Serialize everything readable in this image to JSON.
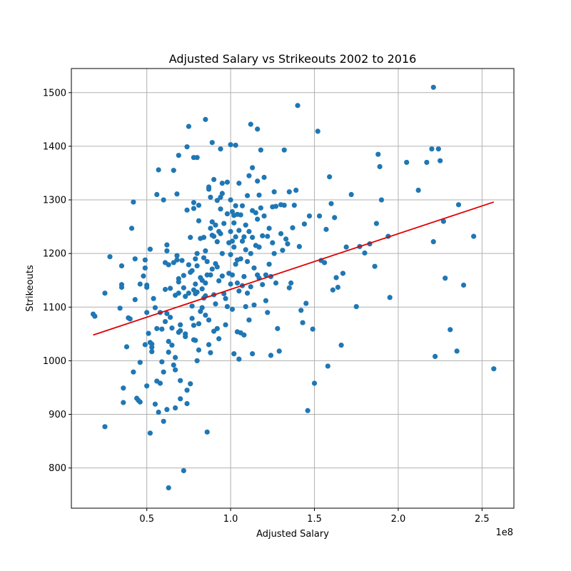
{
  "chart_data": {
    "type": "scatter",
    "title": "Adjusted Salary vs Strikeouts 2002 to 2016",
    "xlabel": "Adjusted Salary",
    "ylabel": "Strikeouts",
    "x_offset_label": "1e8",
    "xlim": [
      0.05,
      2.69
    ],
    "ylim": [
      725,
      1545
    ],
    "x_ticks": [
      0.5,
      1.0,
      1.5,
      2.0,
      2.5
    ],
    "x_tick_labels": [
      "0.5",
      "1.0",
      "1.5",
      "2.0",
      "2.5"
    ],
    "y_ticks": [
      800,
      900,
      1000,
      1100,
      1200,
      1300,
      1400,
      1500
    ],
    "y_tick_labels": [
      "800",
      "900",
      "1000",
      "1100",
      "1200",
      "1300",
      "1400",
      "1500"
    ],
    "grid": true,
    "point_color": "#1f77b4",
    "trendline": {
      "color": "#e00000",
      "x": [
        0.18,
        2.57
      ],
      "y": [
        1048,
        1296
      ]
    },
    "points": [
      [
        0.18,
        1087
      ],
      [
        0.19,
        1083
      ],
      [
        0.25,
        877
      ],
      [
        0.25,
        1126
      ],
      [
        0.28,
        1194
      ],
      [
        0.34,
        1098
      ],
      [
        0.35,
        1177
      ],
      [
        0.35,
        1142
      ],
      [
        0.35,
        1137
      ],
      [
        0.36,
        949
      ],
      [
        0.36,
        922
      ],
      [
        0.38,
        1026
      ],
      [
        0.39,
        1080
      ],
      [
        0.4,
        1078
      ],
      [
        0.41,
        1247
      ],
      [
        0.42,
        1296
      ],
      [
        0.42,
        979
      ],
      [
        0.43,
        1114
      ],
      [
        0.43,
        1190
      ],
      [
        0.44,
        930
      ],
      [
        0.45,
        926
      ],
      [
        0.46,
        923
      ],
      [
        0.46,
        997
      ],
      [
        0.46,
        1143
      ],
      [
        0.48,
        1158
      ],
      [
        0.49,
        1188
      ],
      [
        0.49,
        1173
      ],
      [
        0.49,
        1030
      ],
      [
        0.5,
        1141
      ],
      [
        0.5,
        1137
      ],
      [
        0.5,
        953
      ],
      [
        0.5,
        1090
      ],
      [
        0.51,
        1051
      ],
      [
        0.52,
        865
      ],
      [
        0.52,
        1034
      ],
      [
        0.52,
        1208
      ],
      [
        0.53,
        1031
      ],
      [
        0.53,
        1025
      ],
      [
        0.53,
        1017
      ],
      [
        0.54,
        1116
      ],
      [
        0.55,
        919
      ],
      [
        0.55,
        1099
      ],
      [
        0.56,
        1310
      ],
      [
        0.56,
        962
      ],
      [
        0.56,
        1060
      ],
      [
        0.57,
        1356
      ],
      [
        0.57,
        904
      ],
      [
        0.58,
        1090
      ],
      [
        0.58,
        958
      ],
      [
        0.59,
        1059
      ],
      [
        0.59,
        998
      ],
      [
        0.6,
        979
      ],
      [
        0.6,
        1300
      ],
      [
        0.6,
        887
      ],
      [
        0.61,
        1073
      ],
      [
        0.61,
        1133
      ],
      [
        0.61,
        1183
      ],
      [
        0.62,
        1205
      ],
      [
        0.62,
        1216
      ],
      [
        0.62,
        909
      ],
      [
        0.62,
        1088
      ],
      [
        0.63,
        763
      ],
      [
        0.63,
        1179
      ],
      [
        0.63,
        1036
      ],
      [
        0.63,
        1016
      ],
      [
        0.64,
        1135
      ],
      [
        0.64,
        1081
      ],
      [
        0.65,
        1061
      ],
      [
        0.65,
        1029
      ],
      [
        0.66,
        1355
      ],
      [
        0.66,
        1183
      ],
      [
        0.66,
        992
      ],
      [
        0.67,
        912
      ],
      [
        0.67,
        1122
      ],
      [
        0.67,
        1006
      ],
      [
        0.67,
        983
      ],
      [
        0.68,
        1311
      ],
      [
        0.68,
        1196
      ],
      [
        0.68,
        1188
      ],
      [
        0.69,
        1383
      ],
      [
        0.69,
        1153
      ],
      [
        0.69,
        1147
      ],
      [
        0.69,
        1126
      ],
      [
        0.69,
        1053
      ],
      [
        0.7,
        1067
      ],
      [
        0.7,
        1056
      ],
      [
        0.7,
        963
      ],
      [
        0.7,
        929
      ],
      [
        0.71,
        1187
      ],
      [
        0.72,
        795
      ],
      [
        0.72,
        1136
      ],
      [
        0.72,
        1159
      ],
      [
        0.73,
        1045
      ],
      [
        0.73,
        1120
      ],
      [
        0.73,
        1050
      ],
      [
        0.74,
        1281
      ],
      [
        0.74,
        1399
      ],
      [
        0.74,
        920
      ],
      [
        0.74,
        945
      ],
      [
        0.75,
        1437
      ],
      [
        0.75,
        1179
      ],
      [
        0.75,
        1126
      ],
      [
        0.76,
        1230
      ],
      [
        0.76,
        1165
      ],
      [
        0.76,
        957
      ],
      [
        0.77,
        1168
      ],
      [
        0.77,
        1102
      ],
      [
        0.77,
        1079
      ],
      [
        0.78,
        1379
      ],
      [
        0.78,
        1284
      ],
      [
        0.78,
        1295
      ],
      [
        0.78,
        1132
      ],
      [
        0.78,
        1066
      ],
      [
        0.78,
        1039
      ],
      [
        0.79,
        1190
      ],
      [
        0.79,
        1143
      ],
      [
        0.79,
        1125
      ],
      [
        0.79,
        1038
      ],
      [
        0.8,
        1379
      ],
      [
        0.8,
        1200
      ],
      [
        0.8,
        1177
      ],
      [
        0.8,
        1128
      ],
      [
        0.8,
        1000
      ],
      [
        0.81,
        1290
      ],
      [
        0.81,
        1261
      ],
      [
        0.81,
        1069
      ],
      [
        0.81,
        1020
      ],
      [
        0.82,
        1228
      ],
      [
        0.82,
        1155
      ],
      [
        0.82,
        1092
      ],
      [
        0.83,
        1150
      ],
      [
        0.83,
        1134
      ],
      [
        0.83,
        1099
      ],
      [
        0.84,
        1230
      ],
      [
        0.84,
        1192
      ],
      [
        0.84,
        1117
      ],
      [
        0.85,
        1450
      ],
      [
        0.85,
        1205
      ],
      [
        0.85,
        1145
      ],
      [
        0.85,
        1121
      ],
      [
        0.85,
        1085
      ],
      [
        0.86,
        867
      ],
      [
        0.86,
        1185
      ],
      [
        0.86,
        1160
      ],
      [
        0.87,
        1324
      ],
      [
        0.87,
        1320
      ],
      [
        0.87,
        1076
      ],
      [
        0.87,
        1030
      ],
      [
        0.88,
        1305
      ],
      [
        0.88,
        1247
      ],
      [
        0.88,
        1160
      ],
      [
        0.88,
        1015
      ],
      [
        0.89,
        1407
      ],
      [
        0.89,
        1259
      ],
      [
        0.89,
        1234
      ],
      [
        0.89,
        1171
      ],
      [
        0.9,
        1338
      ],
      [
        0.9,
        1232
      ],
      [
        0.9,
        1123
      ],
      [
        0.9,
        1055
      ],
      [
        0.91,
        1253
      ],
      [
        0.91,
        1181
      ],
      [
        0.91,
        1106
      ],
      [
        0.92,
        1299
      ],
      [
        0.92,
        1222
      ],
      [
        0.92,
        1175
      ],
      [
        0.92,
        1060
      ],
      [
        0.93,
        1241
      ],
      [
        0.93,
        1149
      ],
      [
        0.93,
        1041
      ],
      [
        0.94,
        1395
      ],
      [
        0.94,
        1305
      ],
      [
        0.94,
        1283
      ],
      [
        0.94,
        1237
      ],
      [
        0.95,
        1331
      ],
      [
        0.95,
        1312
      ],
      [
        0.95,
        1200
      ],
      [
        0.95,
        1158
      ],
      [
        0.96,
        1256
      ],
      [
        0.96,
        1125
      ],
      [
        0.97,
        1116
      ],
      [
        0.97,
        1067
      ],
      [
        0.98,
        1333
      ],
      [
        0.98,
        1274
      ],
      [
        0.98,
        1101
      ],
      [
        0.99,
        1220
      ],
      [
        0.99,
        1163
      ],
      [
        1.0,
        1403
      ],
      [
        1.0,
        1300
      ],
      [
        1.0,
        1241
      ],
      [
        1.0,
        1198
      ],
      [
        1.0,
        1143
      ],
      [
        1.01,
        1278
      ],
      [
        1.01,
        1223
      ],
      [
        1.01,
        1160
      ],
      [
        1.01,
        1096
      ],
      [
        1.02,
        1271
      ],
      [
        1.02,
        1257
      ],
      [
        1.02,
        1212
      ],
      [
        1.02,
        1013
      ],
      [
        1.03,
        1402
      ],
      [
        1.03,
        1289
      ],
      [
        1.03,
        1231
      ],
      [
        1.03,
        1180
      ],
      [
        1.04,
        1273
      ],
      [
        1.04,
        1188
      ],
      [
        1.04,
        1145
      ],
      [
        1.04,
        1054
      ],
      [
        1.05,
        1331
      ],
      [
        1.05,
        1243
      ],
      [
        1.05,
        1130
      ],
      [
        1.05,
        1003
      ],
      [
        1.06,
        1272
      ],
      [
        1.06,
        1190
      ],
      [
        1.06,
        1052
      ],
      [
        1.07,
        1289
      ],
      [
        1.07,
        1223
      ],
      [
        1.07,
        1140
      ],
      [
        1.08,
        1231
      ],
      [
        1.08,
        1157
      ],
      [
        1.08,
        1048
      ],
      [
        1.09,
        1253
      ],
      [
        1.09,
        1207
      ],
      [
        1.09,
        1101
      ],
      [
        1.1,
        1308
      ],
      [
        1.1,
        1185
      ],
      [
        1.1,
        1126
      ],
      [
        1.11,
        1345
      ],
      [
        1.11,
        1241
      ],
      [
        1.11,
        1076
      ],
      [
        1.12,
        1441
      ],
      [
        1.12,
        1200
      ],
      [
        1.12,
        1138
      ],
      [
        1.13,
        1360
      ],
      [
        1.13,
        1280
      ],
      [
        1.13,
        1230
      ],
      [
        1.13,
        1013
      ],
      [
        1.14,
        1173
      ],
      [
        1.14,
        1104
      ],
      [
        1.15,
        1276
      ],
      [
        1.15,
        1215
      ],
      [
        1.16,
        1432
      ],
      [
        1.16,
        1335
      ],
      [
        1.16,
        1264
      ],
      [
        1.16,
        1160
      ],
      [
        1.17,
        1309
      ],
      [
        1.17,
        1212
      ],
      [
        1.17,
        1154
      ],
      [
        1.18,
        1393
      ],
      [
        1.18,
        1285
      ],
      [
        1.19,
        1233
      ],
      [
        1.19,
        1142
      ],
      [
        1.2,
        1342
      ],
      [
        1.2,
        1270
      ],
      [
        1.21,
        1160
      ],
      [
        1.21,
        1112
      ],
      [
        1.22,
        1232
      ],
      [
        1.22,
        1090
      ],
      [
        1.23,
        1247
      ],
      [
        1.23,
        1180
      ],
      [
        1.24,
        1157
      ],
      [
        1.24,
        1010
      ],
      [
        1.25,
        1287
      ],
      [
        1.25,
        1220
      ],
      [
        1.26,
        1315
      ],
      [
        1.26,
        1200
      ],
      [
        1.27,
        1288
      ],
      [
        1.27,
        1145
      ],
      [
        1.28,
        1060
      ],
      [
        1.29,
        1018
      ],
      [
        1.3,
        1291
      ],
      [
        1.3,
        1237
      ],
      [
        1.31,
        1206
      ],
      [
        1.32,
        1393
      ],
      [
        1.32,
        1290
      ],
      [
        1.33,
        1227
      ],
      [
        1.34,
        1218
      ],
      [
        1.35,
        1315
      ],
      [
        1.35,
        1136
      ],
      [
        1.36,
        1145
      ],
      [
        1.37,
        1248
      ],
      [
        1.38,
        1290
      ],
      [
        1.39,
        1318
      ],
      [
        1.4,
        1476
      ],
      [
        1.41,
        1213
      ],
      [
        1.42,
        1094
      ],
      [
        1.43,
        1071
      ],
      [
        1.44,
        1255
      ],
      [
        1.45,
        1107
      ],
      [
        1.46,
        907
      ],
      [
        1.47,
        1270
      ],
      [
        1.49,
        1059
      ],
      [
        1.5,
        958
      ],
      [
        1.52,
        1428
      ],
      [
        1.53,
        1270
      ],
      [
        1.54,
        1187
      ],
      [
        1.56,
        1183
      ],
      [
        1.57,
        1245
      ],
      [
        1.58,
        990
      ],
      [
        1.59,
        1343
      ],
      [
        1.6,
        1293
      ],
      [
        1.61,
        1132
      ],
      [
        1.62,
        1267
      ],
      [
        1.63,
        1155
      ],
      [
        1.64,
        1137
      ],
      [
        1.66,
        1029
      ],
      [
        1.67,
        1163
      ],
      [
        1.69,
        1212
      ],
      [
        1.72,
        1310
      ],
      [
        1.75,
        1101
      ],
      [
        1.77,
        1213
      ],
      [
        1.8,
        1201
      ],
      [
        1.83,
        1218
      ],
      [
        1.86,
        1176
      ],
      [
        1.87,
        1256
      ],
      [
        1.88,
        1385
      ],
      [
        1.89,
        1362
      ],
      [
        1.9,
        1300
      ],
      [
        1.94,
        1232
      ],
      [
        1.95,
        1118
      ],
      [
        2.05,
        1370
      ],
      [
        2.12,
        1318
      ],
      [
        2.17,
        1370
      ],
      [
        2.2,
        1395
      ],
      [
        2.21,
        1510
      ],
      [
        2.21,
        1222
      ],
      [
        2.22,
        1008
      ],
      [
        2.24,
        1395
      ],
      [
        2.25,
        1373
      ],
      [
        2.27,
        1260
      ],
      [
        2.28,
        1154
      ],
      [
        2.31,
        1058
      ],
      [
        2.35,
        1018
      ],
      [
        2.36,
        1291
      ],
      [
        2.39,
        1141
      ],
      [
        2.45,
        1232
      ],
      [
        2.57,
        985
      ]
    ]
  }
}
